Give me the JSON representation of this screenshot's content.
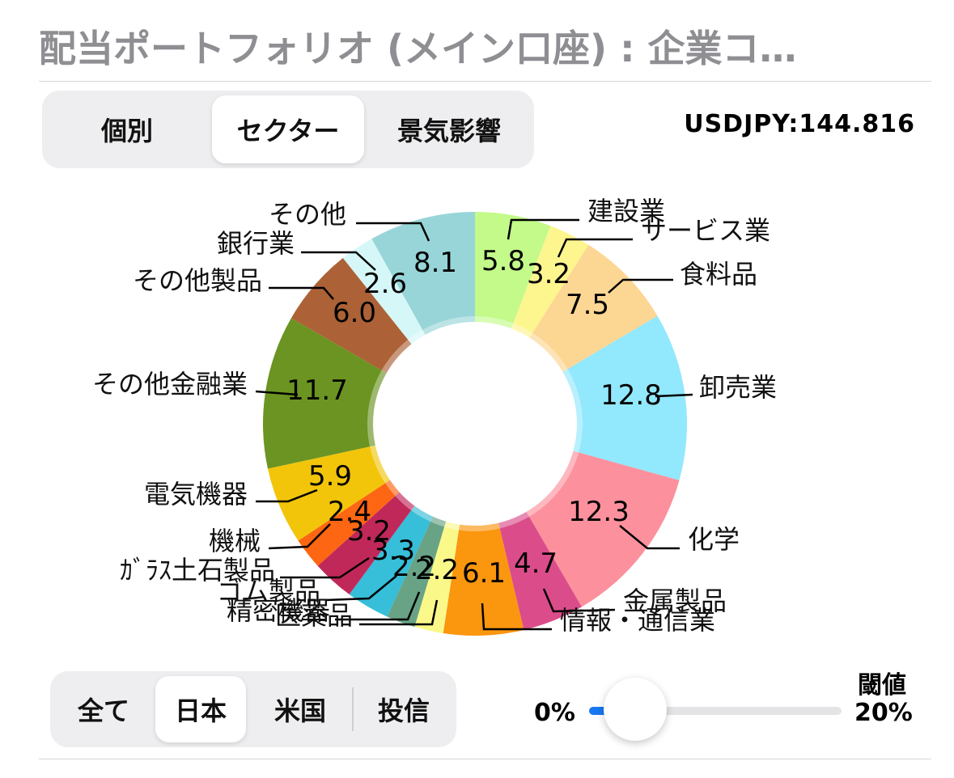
{
  "title": "配当ポートフォリオ (メイン口座) : 企業コ…",
  "view_tabs": [
    {
      "label": "個別",
      "active": false
    },
    {
      "label": "セクター",
      "active": true
    },
    {
      "label": "景気影響",
      "active": false
    }
  ],
  "exchange_rate": "USDJPY:144.816",
  "market_tabs": [
    {
      "label": "全て",
      "active": false
    },
    {
      "label": "日本",
      "active": true
    },
    {
      "label": "米国",
      "active": false
    },
    {
      "label": "投信",
      "active": false
    }
  ],
  "threshold": {
    "title": "閾値",
    "min_label": "0%",
    "max_label": "20%",
    "value_fraction": 0.03
  },
  "chart_data": {
    "type": "pie",
    "donut": true,
    "slices": [
      {
        "name": "建設業",
        "value": 5.8,
        "label": "5.8",
        "color": "#c3fa8a"
      },
      {
        "name": "サービス業",
        "value": 3.2,
        "label": "3.2",
        "color": "#fdf58e"
      },
      {
        "name": "食料品",
        "value": 7.5,
        "label": "7.5",
        "color": "#fcd693"
      },
      {
        "name": "卸売業",
        "value": 12.8,
        "label": "12.8",
        "color": "#92e8fc"
      },
      {
        "name": "化学",
        "value": 12.3,
        "label": "12.3",
        "color": "#fc919d"
      },
      {
        "name": "金属製品",
        "value": 4.7,
        "label": "4.7",
        "color": "#da4d8a"
      },
      {
        "name": "情報・通信業",
        "value": 6.1,
        "label": "6.1",
        "color": "#fb960f"
      },
      {
        "name": "医薬品",
        "value": 2.2,
        "label": "2.2",
        "color": "#fbf88a"
      },
      {
        "name": "精密機器",
        "value": 2.2,
        "label": "2.2",
        "color": "#69a386"
      },
      {
        "name": "ゴム製品",
        "value": 3.3,
        "label": "3.3",
        "color": "#37bed8"
      },
      {
        "name": "ｶﾞﾗｽ土石製品",
        "value": 3.2,
        "label": "3.2",
        "color": "#c0285a"
      },
      {
        "name": "機械",
        "value": 2.4,
        "label": "2.4",
        "color": "#fd6612"
      },
      {
        "name": "電気機器",
        "value": 5.9,
        "label": "5.9",
        "color": "#f2c50b"
      },
      {
        "name": "その他金融業",
        "value": 11.7,
        "label": "11.7",
        "color": "#6b9422"
      },
      {
        "name": "その他製品",
        "value": 6.0,
        "label": "6.0",
        "color": "#ac6236"
      },
      {
        "name": "銀行業",
        "value": 2.6,
        "label": "2.6",
        "color": "#d6f7f7"
      },
      {
        "name": "その他",
        "value": 8.1,
        "label": "8.1",
        "color": "#98d5d8"
      }
    ]
  }
}
